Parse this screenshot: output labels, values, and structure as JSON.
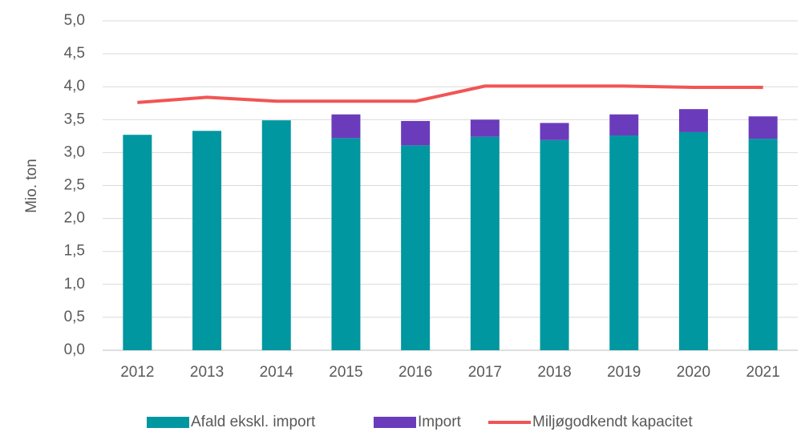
{
  "chart_data": {
    "type": "bar",
    "stacked": true,
    "y_label": "Mio. ton",
    "categories": [
      "2012",
      "2013",
      "2014",
      "2015",
      "2016",
      "2017",
      "2018",
      "2019",
      "2020",
      "2021"
    ],
    "series": [
      {
        "name": "Afald ekskl. import",
        "color": "#0097a0",
        "type": "bar",
        "values": [
          3.27,
          3.33,
          3.49,
          3.22,
          3.11,
          3.24,
          3.19,
          3.26,
          3.31,
          3.21
        ]
      },
      {
        "name": "Import",
        "color": "#6a3cbc",
        "type": "bar",
        "values": [
          0,
          0,
          0,
          0.36,
          0.37,
          0.26,
          0.26,
          0.32,
          0.35,
          0.34
        ]
      },
      {
        "name": "Miljøgodkendt kapacitet",
        "color": "#f25454",
        "type": "line",
        "values": [
          3.76,
          3.84,
          3.78,
          3.78,
          3.78,
          4.01,
          4.01,
          4.01,
          3.99,
          3.99
        ]
      }
    ],
    "ylim": [
      0,
      5
    ],
    "yticks": [
      {
        "value": 0,
        "label": "0,0"
      },
      {
        "value": 0.5,
        "label": "0,5"
      },
      {
        "value": 1,
        "label": "1,0"
      },
      {
        "value": 1.5,
        "label": "1,5"
      },
      {
        "value": 2,
        "label": "2,0"
      },
      {
        "value": 2.5,
        "label": "2,5"
      },
      {
        "value": 3,
        "label": "3,0"
      },
      {
        "value": 3.5,
        "label": "3,5"
      },
      {
        "value": 4,
        "label": "4,0"
      },
      {
        "value": 4.5,
        "label": "4,5"
      },
      {
        "value": 5,
        "label": "5,0"
      }
    ],
    "grid": true,
    "legend": "bottom"
  }
}
